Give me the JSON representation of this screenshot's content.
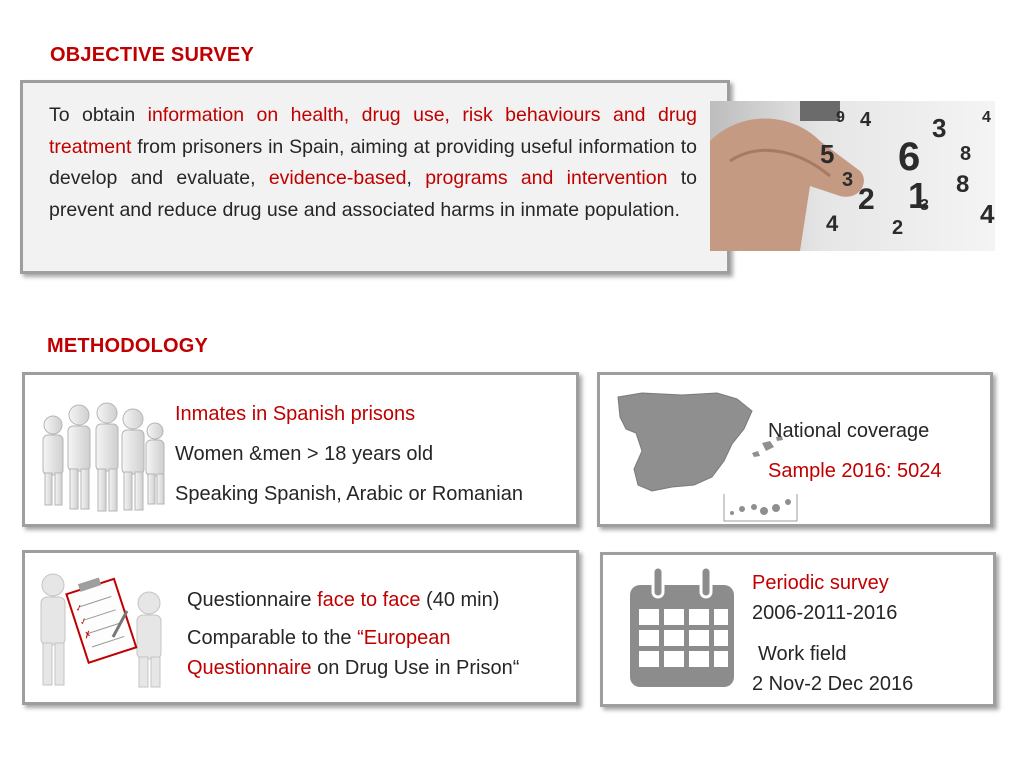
{
  "objective": {
    "heading": "OBJECTIVE SURVEY",
    "text_parts": [
      {
        "text": "To obtain ",
        "highlight": false
      },
      {
        "text": "information on health, drug use, risk behaviours and drug treatment",
        "highlight": true
      },
      {
        "text": " from prisoners in Spain, aiming at providing useful information to develop and evaluate, ",
        "highlight": false
      },
      {
        "text": "evidence-based",
        "highlight": true
      },
      {
        "text": ", ",
        "highlight": false
      },
      {
        "text": "programs and intervention",
        "highlight": true
      },
      {
        "text": " to prevent and reduce drug use and associated harms in inmate population.",
        "highlight": false
      }
    ],
    "photo_digits": [
      "4",
      "3",
      "5",
      "6",
      "8",
      "3",
      "2",
      "1",
      "8",
      "4",
      "2",
      "4",
      "9",
      "3",
      "4"
    ]
  },
  "methodology": {
    "heading": "METHODOLOGY",
    "population": {
      "title": "Inmates in Spanish prisons",
      "line1": "Women &men > 18 years old",
      "line2": "Speaking Spanish, Arabic or Romanian"
    },
    "coverage": {
      "line1": "National coverage",
      "line2": "Sample 2016: 5024"
    },
    "questionnaire": {
      "line1_a": "Questionnaire ",
      "line1_b": "face to face",
      "line1_c": " (40 min)",
      "line2_a": "Comparable to the ",
      "line2_b": "“European",
      "line3_a": "Questionnaire",
      "line3_b": " on Drug Use in Prison“"
    },
    "periodic": {
      "title": "Periodic survey",
      "years": "2006-2011-2016",
      "work_label": "Work field",
      "work_dates": "2 Nov-2 Dec 2016"
    }
  },
  "colors": {
    "accent": "#c00000",
    "text": "#262626",
    "border": "#9e9e9e",
    "icon_grey": "#8c8c8c"
  }
}
